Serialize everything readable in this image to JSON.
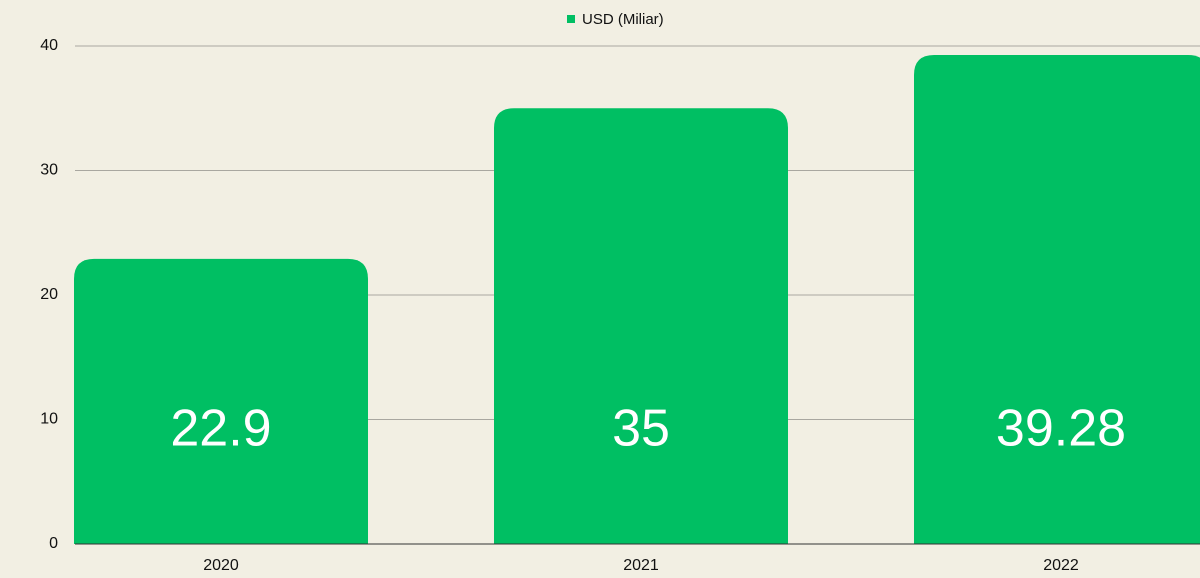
{
  "chart_data": {
    "type": "bar",
    "categories": [
      "2020",
      "2021",
      "2022"
    ],
    "series": [
      {
        "name": "USD (Miliar)",
        "color": "#00bf63",
        "values": [
          22.9,
          35,
          39.28
        ]
      }
    ],
    "ylim": [
      0,
      40
    ],
    "yticks": [
      0,
      10,
      20,
      30,
      40
    ],
    "grid": true,
    "legend": "top"
  }
}
